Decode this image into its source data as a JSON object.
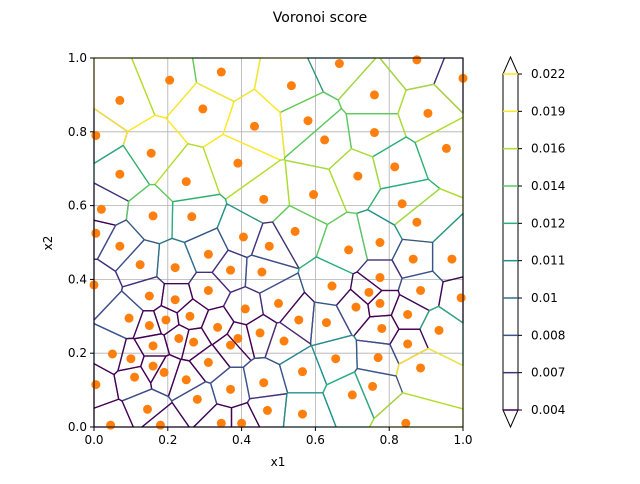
{
  "chart_data": {
    "type": "contour",
    "title": "Voronoi score",
    "xlabel": "x1",
    "ylabel": "x2",
    "xlim": [
      0,
      1
    ],
    "ylim": [
      0,
      1
    ],
    "x_ticks": [
      "0.0",
      "0.2",
      "0.4",
      "0.6",
      "0.8",
      "1.0"
    ],
    "y_ticks": [
      "0.0",
      "0.2",
      "0.4",
      "0.6",
      "0.8",
      "1.0"
    ],
    "grid": true,
    "point_color": "#ff7f0e",
    "colorbar": {
      "colormap": "viridis",
      "extend": "both",
      "levels": [
        "0.004",
        "0.007",
        "0.008",
        "0.01",
        "0.011",
        "0.012",
        "0.014",
        "0.016",
        "0.019",
        "0.022"
      ],
      "colors": [
        "#440154",
        "#472d7b",
        "#3b528b",
        "#2c728e",
        "#21918c",
        "#28ae80",
        "#5ec962",
        "#addc30",
        "#fde725",
        "#fde725"
      ]
    },
    "points": [
      [
        0.005,
        0.79
      ],
      [
        0.07,
        0.885
      ],
      [
        0.205,
        0.94
      ],
      [
        0.345,
        0.962
      ],
      [
        0.535,
        0.925
      ],
      [
        0.665,
        0.985
      ],
      [
        0.875,
        0.995
      ],
      [
        1.0,
        0.945
      ],
      [
        0.76,
        0.9
      ],
      [
        0.295,
        0.862
      ],
      [
        0.58,
        0.83
      ],
      [
        0.435,
        0.815
      ],
      [
        0.76,
        0.798
      ],
      [
        0.905,
        0.85
      ],
      [
        0.625,
        0.778
      ],
      [
        0.155,
        0.742
      ],
      [
        0.955,
        0.755
      ],
      [
        0.39,
        0.715
      ],
      [
        0.815,
        0.705
      ],
      [
        0.07,
        0.685
      ],
      [
        0.715,
        0.68
      ],
      [
        0.25,
        0.665
      ],
      [
        0.595,
        0.63
      ],
      [
        0.46,
        0.617
      ],
      [
        0.835,
        0.605
      ],
      [
        0.02,
        0.59
      ],
      [
        0.16,
        0.572
      ],
      [
        0.265,
        0.57
      ],
      [
        0.875,
        0.555
      ],
      [
        0.005,
        0.525
      ],
      [
        0.545,
        0.53
      ],
      [
        0.405,
        0.515
      ],
      [
        0.07,
        0.49
      ],
      [
        0.475,
        0.49
      ],
      [
        0.775,
        0.5
      ],
      [
        0.69,
        0.48
      ],
      [
        0.31,
        0.468
      ],
      [
        0.97,
        0.455
      ],
      [
        0.865,
        0.455
      ],
      [
        0.125,
        0.44
      ],
      [
        0.22,
        0.432
      ],
      [
        0.37,
        0.425
      ],
      [
        0.455,
        0.42
      ],
      [
        0.775,
        0.405
      ],
      [
        0.0,
        0.385
      ],
      [
        0.645,
        0.382
      ],
      [
        0.885,
        0.37
      ],
      [
        0.31,
        0.37
      ],
      [
        0.745,
        0.365
      ],
      [
        0.15,
        0.355
      ],
      [
        0.995,
        0.35
      ],
      [
        0.22,
        0.345
      ],
      [
        0.5,
        0.335
      ],
      [
        0.775,
        0.335
      ],
      [
        0.71,
        0.325
      ],
      [
        0.41,
        0.32
      ],
      [
        0.26,
        0.3
      ],
      [
        0.095,
        0.295
      ],
      [
        0.195,
        0.29
      ],
      [
        0.555,
        0.29
      ],
      [
        0.85,
        0.305
      ],
      [
        0.63,
        0.283
      ],
      [
        0.15,
        0.275
      ],
      [
        0.335,
        0.27
      ],
      [
        0.78,
        0.267
      ],
      [
        0.935,
        0.262
      ],
      [
        0.45,
        0.255
      ],
      [
        0.23,
        0.24
      ],
      [
        0.39,
        0.24
      ],
      [
        0.27,
        0.23
      ],
      [
        0.515,
        0.233
      ],
      [
        0.37,
        0.222
      ],
      [
        0.85,
        0.225
      ],
      [
        0.16,
        0.22
      ],
      [
        0.05,
        0.198
      ],
      [
        0.1,
        0.185
      ],
      [
        0.655,
        0.185
      ],
      [
        0.77,
        0.188
      ],
      [
        0.31,
        0.175
      ],
      [
        0.16,
        0.165
      ],
      [
        0.565,
        0.15
      ],
      [
        0.885,
        0.16
      ],
      [
        0.19,
        0.148
      ],
      [
        0.11,
        0.135
      ],
      [
        0.25,
        0.128
      ],
      [
        0.46,
        0.12
      ],
      [
        0.005,
        0.115
      ],
      [
        0.755,
        0.11
      ],
      [
        0.37,
        0.102
      ],
      [
        0.7,
        0.087
      ],
      [
        0.28,
        0.075
      ],
      [
        0.145,
        0.048
      ],
      [
        0.47,
        0.045
      ],
      [
        0.565,
        0.035
      ],
      [
        0.18,
        0.005
      ],
      [
        0.345,
        0.01
      ],
      [
        0.4,
        0.01
      ],
      [
        0.045,
        0.005
      ],
      [
        0.845,
        0.01
      ]
    ]
  }
}
